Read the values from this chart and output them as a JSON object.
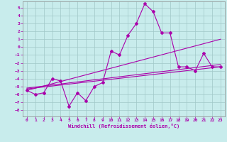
{
  "xlabel": "Windchill (Refroidissement éolien,°C)",
  "bg_color": "#c8ecec",
  "grid_color": "#a0c8c8",
  "line_color": "#aa00aa",
  "spine_color": "#888888",
  "xlim": [
    -0.5,
    23.5
  ],
  "ylim": [
    -8.8,
    5.8
  ],
  "xticks": [
    0,
    1,
    2,
    3,
    4,
    5,
    6,
    7,
    8,
    9,
    10,
    11,
    12,
    13,
    14,
    15,
    16,
    17,
    18,
    19,
    20,
    21,
    22,
    23
  ],
  "yticks": [
    -8,
    -7,
    -6,
    -5,
    -4,
    -3,
    -2,
    -1,
    0,
    1,
    2,
    3,
    4,
    5
  ],
  "scatter_x": [
    0,
    1,
    2,
    3,
    4,
    5,
    6,
    7,
    8,
    9,
    10,
    11,
    12,
    13,
    14,
    15,
    16,
    17,
    18,
    19,
    20,
    21,
    22,
    23
  ],
  "scatter_y": [
    -5.5,
    -6.0,
    -5.8,
    -4.0,
    -4.3,
    -7.5,
    -5.8,
    -6.8,
    -5.0,
    -4.5,
    -0.5,
    -1.0,
    1.5,
    3.0,
    5.5,
    4.5,
    1.8,
    1.8,
    -2.5,
    -2.5,
    -3.0,
    -0.8,
    -2.5,
    -2.5
  ],
  "line1_x": [
    0,
    23
  ],
  "line1_y": [
    -5.5,
    1.0
  ],
  "line2_x": [
    0,
    23
  ],
  "line2_y": [
    -5.2,
    -2.2
  ],
  "line3_x": [
    0,
    23
  ],
  "line3_y": [
    -5.3,
    -2.5
  ],
  "marker": "D",
  "markersize": 2.0,
  "linewidth": 0.8,
  "tick_fontsize": 4.5,
  "xlabel_fontsize": 5.0
}
